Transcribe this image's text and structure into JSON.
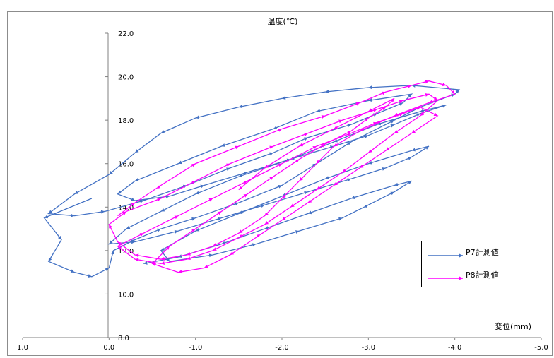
{
  "chart_data": {
    "type": "line",
    "title": "",
    "xlabel": "変位(mm)",
    "ylabel": "温度(℃)",
    "xlim": [
      1.0,
      -5.0
    ],
    "ylim": [
      8.0,
      22.0
    ],
    "x_ticks": [
      "1.0",
      "0.0",
      "-1.0",
      "-2.0",
      "-3.0",
      "-4.0",
      "-5.0"
    ],
    "y_ticks": [
      "8.0",
      "10.0",
      "12.0",
      "14.0",
      "16.0",
      "18.0",
      "20.0",
      "22.0"
    ],
    "grid": false,
    "legend_position": "right",
    "series": [
      {
        "name": "P7計測値",
        "color": "#4472C4",
        "marker": "arrow",
        "x": [
          0.2,
          0.75,
          0.55,
          0.7,
          0.4,
          0.2,
          0.0,
          -0.05,
          -0.3,
          -0.6,
          -1.0,
          -1.5,
          -2.0,
          -2.4,
          -2.8,
          -3.3,
          -3.6,
          -4.0,
          -4.05,
          -3.5,
          -3.0,
          -2.5,
          -2.0,
          -1.5,
          -1.0,
          -0.6,
          -0.3,
          0.0,
          0.4,
          0.7,
          0.4,
          0.05,
          -0.4,
          -0.9,
          -1.4,
          -1.9,
          -2.3,
          -2.8,
          -3.1,
          -3.4,
          -3.5,
          -3.0,
          -2.4,
          -1.9,
          -1.3,
          -0.8,
          -0.3,
          -0.1,
          -0.3,
          -0.7,
          -1.1,
          -1.6,
          -2.1,
          -2.6,
          -3.0,
          -3.3,
          -3.6,
          -3.9,
          -3.6,
          -3.1,
          -2.6,
          -2.1,
          -1.5,
          -1.0,
          -0.6,
          -0.2,
          0.0,
          -0.3,
          -0.8,
          -1.3,
          -1.8,
          -2.3,
          -2.8,
          -3.2,
          -3.5,
          -3.7,
          -3.5,
          -3.0,
          -2.5,
          -2.0,
          -1.5,
          -1.0,
          -0.6,
          -0.7,
          -1.2,
          -1.7,
          -2.2,
          -2.7,
          -3.0,
          -3.3,
          -3.5,
          -3.3,
          -2.8,
          -2.3,
          -1.8,
          -1.3,
          -0.8,
          -0.4
        ],
        "y": [
          14.4,
          13.5,
          12.5,
          11.5,
          11.0,
          10.8,
          11.2,
          12.0,
          12.5,
          13.0,
          13.5,
          14.2,
          15.0,
          16.0,
          17.0,
          18.0,
          18.6,
          19.2,
          19.4,
          19.6,
          19.5,
          19.3,
          19.0,
          18.6,
          18.1,
          17.4,
          16.5,
          15.5,
          14.6,
          13.7,
          13.6,
          13.8,
          14.3,
          15.0,
          15.8,
          16.5,
          17.2,
          17.8,
          18.3,
          18.8,
          19.2,
          18.9,
          18.4,
          17.6,
          16.8,
          16.0,
          15.2,
          14.6,
          14.3,
          14.5,
          15.0,
          15.6,
          16.2,
          16.8,
          17.3,
          17.8,
          18.3,
          18.7,
          18.4,
          17.8,
          17.0,
          16.2,
          15.4,
          14.6,
          13.8,
          13.0,
          12.3,
          12.4,
          12.9,
          13.5,
          14.1,
          14.7,
          15.3,
          15.8,
          16.3,
          16.8,
          16.6,
          16.0,
          15.3,
          14.5,
          13.7,
          12.9,
          12.0,
          11.5,
          11.8,
          12.3,
          12.9,
          13.5,
          14.1,
          14.7,
          15.2,
          15.0,
          14.4,
          13.7,
          13.0,
          12.3,
          11.7,
          11.4
        ]
      },
      {
        "name": "P8計測値",
        "color": "#FF00FF",
        "marker": "arrow",
        "x": [
          -0.1,
          -0.3,
          -0.6,
          -1.0,
          -1.5,
          -2.0,
          -2.5,
          -2.9,
          -3.2,
          -3.5,
          -3.7,
          -3.9,
          -4.0,
          -3.7,
          -3.3,
          -2.9,
          -2.6,
          -2.4,
          -2.2,
          -2.0,
          -1.8,
          -1.5,
          -1.2,
          -0.9,
          -0.6,
          -0.3,
          -0.1,
          0.0,
          -0.2,
          -0.6,
          -1.0,
          -1.4,
          -1.9,
          -2.3,
          -2.7,
          -3.1,
          -3.4,
          -3.7,
          -3.8,
          -3.6,
          -3.3,
          -3.0,
          -2.7,
          -2.4,
          -2.1,
          -1.8,
          -1.5,
          -1.2,
          -0.9,
          -0.6,
          -0.3,
          -0.1,
          -0.4,
          -0.8,
          -1.2,
          -1.6,
          -2.0,
          -2.4,
          -2.8,
          -3.1,
          -3.4,
          -3.6,
          -3.8,
          -3.5,
          -3.2,
          -2.9,
          -2.6,
          -2.3,
          -2.0,
          -1.7,
          -1.4,
          -1.1,
          -0.8,
          -0.5,
          -0.7,
          -1.0,
          -1.3,
          -1.6,
          -1.9,
          -2.2,
          -2.5,
          -2.8,
          -3.0,
          -3.2,
          -3.3,
          -3.0,
          -2.6,
          -2.2,
          -1.8,
          -1.5
        ],
        "y": [
          13.6,
          14.2,
          15.0,
          16.0,
          16.8,
          17.6,
          18.2,
          18.8,
          19.3,
          19.6,
          19.8,
          19.6,
          19.2,
          18.8,
          18.2,
          17.5,
          16.8,
          16.0,
          15.2,
          14.4,
          13.6,
          12.8,
          12.2,
          11.8,
          11.6,
          11.8,
          12.4,
          13.2,
          13.8,
          14.4,
          15.2,
          16.0,
          16.8,
          17.4,
          18.0,
          18.5,
          18.9,
          19.2,
          18.9,
          18.2,
          17.4,
          16.5,
          15.6,
          14.8,
          14.0,
          13.2,
          12.6,
          12.0,
          11.6,
          11.4,
          11.6,
          12.2,
          12.8,
          13.6,
          14.4,
          15.2,
          16.0,
          16.8,
          17.4,
          17.9,
          18.3,
          18.6,
          18.2,
          17.4,
          16.6,
          15.8,
          15.0,
          14.2,
          13.4,
          12.6,
          11.8,
          11.2,
          11.0,
          11.4,
          12.2,
          13.0,
          13.8,
          14.6,
          15.4,
          16.2,
          16.9,
          17.5,
          18.1,
          18.6,
          19.0,
          18.4,
          17.6,
          16.8,
          15.8,
          14.8
        ]
      }
    ]
  },
  "legend": {
    "items": [
      {
        "label": "P7計測値",
        "color": "#4472C4"
      },
      {
        "label": "P8計測値",
        "color": "#FF00FF"
      }
    ]
  }
}
